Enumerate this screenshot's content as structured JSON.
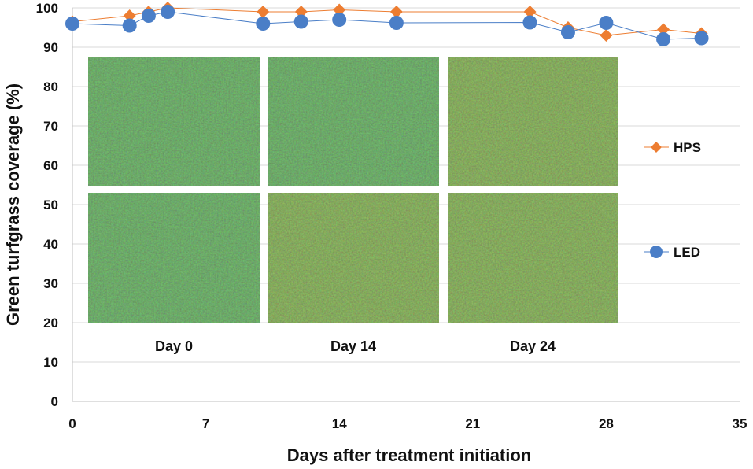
{
  "chart_data": {
    "type": "line",
    "title": "",
    "xlabel": "Days after treatment initiation",
    "ylabel": "Green turfgrass coverage (%)",
    "xlim": [
      0,
      35
    ],
    "ylim": [
      0,
      100
    ],
    "x_ticks": [
      0,
      7,
      14,
      21,
      28,
      35
    ],
    "y_ticks": [
      0,
      10,
      20,
      30,
      40,
      50,
      60,
      70,
      80,
      90,
      100
    ],
    "x_tick_labels": [
      "0",
      "7",
      "14",
      "21",
      "28",
      "35"
    ],
    "y_tick_labels": [
      "0",
      "10",
      "20",
      "30",
      "40",
      "50",
      "60",
      "70",
      "80",
      "90",
      "100"
    ],
    "grid": true,
    "legend_position": "right",
    "series": [
      {
        "name": "HPS",
        "color": "#ED7D31",
        "marker": "diamond",
        "x": [
          0,
          3,
          4,
          5,
          10,
          12,
          14,
          17,
          24,
          26,
          28,
          31,
          33
        ],
        "y": [
          96.5,
          98,
          99,
          100,
          99,
          99,
          99.5,
          99,
          99,
          95,
          93,
          94.5,
          93.5
        ]
      },
      {
        "name": "LED",
        "color": "#4A7EC7",
        "marker": "circle",
        "x": [
          0,
          3,
          4,
          5,
          10,
          12,
          14,
          17,
          24,
          26,
          28,
          31,
          33
        ],
        "y": [
          96,
          95.5,
          98,
          99,
          96,
          96.5,
          97,
          96.2,
          96.3,
          93.8,
          96.2,
          92,
          92.3
        ]
      }
    ],
    "photo_labels": [
      "Day 0",
      "Day 14",
      "Day 24"
    ]
  }
}
